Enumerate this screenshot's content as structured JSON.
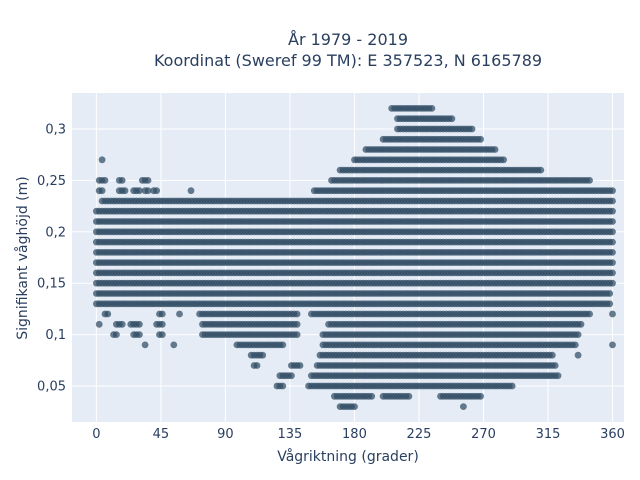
{
  "chart_data": {
    "type": "scatter",
    "title_line1": "År 1979 - 2019",
    "title_line2": "Koordinat (Sweref 99 TM): E 357523, N 6165789",
    "xlabel": "Vågriktning (grader)",
    "ylabel": "Signifikant våghöjd (m)",
    "xlim": [
      -17,
      368
    ],
    "ylim": [
      0.015,
      0.335
    ],
    "x_ticks": [
      0,
      45,
      90,
      135,
      180,
      225,
      270,
      315,
      360
    ],
    "x_tick_labels": [
      "0",
      "45",
      "90",
      "135",
      "180",
      "225",
      "270",
      "315",
      "360"
    ],
    "y_ticks": [
      0.05,
      0.1,
      0.15,
      0.2,
      0.25,
      0.3
    ],
    "y_tick_labels": [
      "0,05",
      "0,1",
      "0,15",
      "0,2",
      "0,25",
      "0,3"
    ],
    "grid": true,
    "marker_color": "#2f4b63",
    "plot_bg": "#e5ecf6",
    "height_step_m": 0.01,
    "direction_step_deg": 2,
    "bands": [
      {
        "y": 0.03,
        "segments": [
          [
            170,
            178
          ]
        ]
      },
      {
        "y": 0.04,
        "segments": [
          [
            166,
            192
          ],
          [
            200,
            216
          ],
          [
            240,
            268
          ]
        ]
      },
      {
        "y": 0.05,
        "segments": [
          [
            126,
            130
          ],
          [
            148,
            290
          ]
        ]
      },
      {
        "y": 0.06,
        "segments": [
          [
            128,
            136
          ],
          [
            150,
            322
          ]
        ]
      },
      {
        "y": 0.07,
        "segments": [
          [
            110,
            112
          ],
          [
            136,
            142
          ],
          [
            154,
            320
          ]
        ]
      },
      {
        "y": 0.08,
        "segments": [
          [
            108,
            116
          ],
          [
            156,
            318
          ]
        ]
      },
      {
        "y": 0.09,
        "segments": [
          [
            34,
            34
          ],
          [
            54,
            54
          ],
          [
            98,
            130
          ],
          [
            158,
            334
          ]
        ]
      },
      {
        "y": 0.1,
        "segments": [
          [
            12,
            14
          ],
          [
            26,
            30
          ],
          [
            44,
            46
          ],
          [
            74,
            140
          ],
          [
            158,
            336
          ]
        ]
      },
      {
        "y": 0.11,
        "segments": [
          [
            2,
            2
          ],
          [
            14,
            18
          ],
          [
            24,
            30
          ],
          [
            42,
            46
          ],
          [
            74,
            140
          ],
          [
            162,
            338
          ]
        ]
      },
      {
        "y": 0.12,
        "segments": [
          [
            6,
            8
          ],
          [
            44,
            46
          ],
          [
            58,
            58
          ],
          [
            72,
            140
          ],
          [
            150,
            344
          ]
        ]
      },
      {
        "y": 0.13,
        "segments": [
          [
            0,
            358
          ]
        ]
      },
      {
        "y": 0.14,
        "segments": [
          [
            0,
            358
          ]
        ]
      },
      {
        "y": 0.15,
        "segments": [
          [
            0,
            360
          ]
        ]
      },
      {
        "y": 0.16,
        "segments": [
          [
            0,
            360
          ]
        ]
      },
      {
        "y": 0.17,
        "segments": [
          [
            0,
            360
          ]
        ]
      },
      {
        "y": 0.18,
        "segments": [
          [
            0,
            360
          ]
        ]
      },
      {
        "y": 0.19,
        "segments": [
          [
            0,
            360
          ]
        ]
      },
      {
        "y": 0.2,
        "segments": [
          [
            0,
            360
          ]
        ]
      },
      {
        "y": 0.21,
        "segments": [
          [
            0,
            360
          ]
        ]
      },
      {
        "y": 0.22,
        "segments": [
          [
            0,
            360
          ]
        ]
      },
      {
        "y": 0.23,
        "segments": [
          [
            4,
            360
          ]
        ]
      },
      {
        "y": 0.24,
        "segments": [
          [
            2,
            4
          ],
          [
            16,
            20
          ],
          [
            26,
            30
          ],
          [
            34,
            36
          ],
          [
            40,
            42
          ],
          [
            66,
            66
          ],
          [
            152,
            360
          ]
        ]
      },
      {
        "y": 0.25,
        "segments": [
          [
            2,
            6
          ],
          [
            16,
            18
          ],
          [
            32,
            36
          ],
          [
            164,
            344
          ]
        ]
      },
      {
        "y": 0.26,
        "segments": [
          [
            170,
            310
          ]
        ]
      },
      {
        "y": 0.27,
        "segments": [
          [
            180,
            284
          ]
        ]
      },
      {
        "y": 0.28,
        "segments": [
          [
            188,
            278
          ]
        ]
      },
      {
        "y": 0.29,
        "segments": [
          [
            200,
            268
          ]
        ]
      },
      {
        "y": 0.3,
        "segments": [
          [
            210,
            262
          ]
        ]
      },
      {
        "y": 0.31,
        "segments": [
          [
            210,
            248
          ]
        ]
      },
      {
        "y": 0.32,
        "segments": [
          [
            206,
            234
          ]
        ]
      }
    ],
    "outliers": [
      {
        "x": 4,
        "y": 0.27
      },
      {
        "x": 180,
        "y": 0.03
      },
      {
        "x": 218,
        "y": 0.04
      },
      {
        "x": 256,
        "y": 0.03
      },
      {
        "x": 336,
        "y": 0.08
      },
      {
        "x": 360,
        "y": 0.09
      },
      {
        "x": 360,
        "y": 0.12
      }
    ]
  }
}
